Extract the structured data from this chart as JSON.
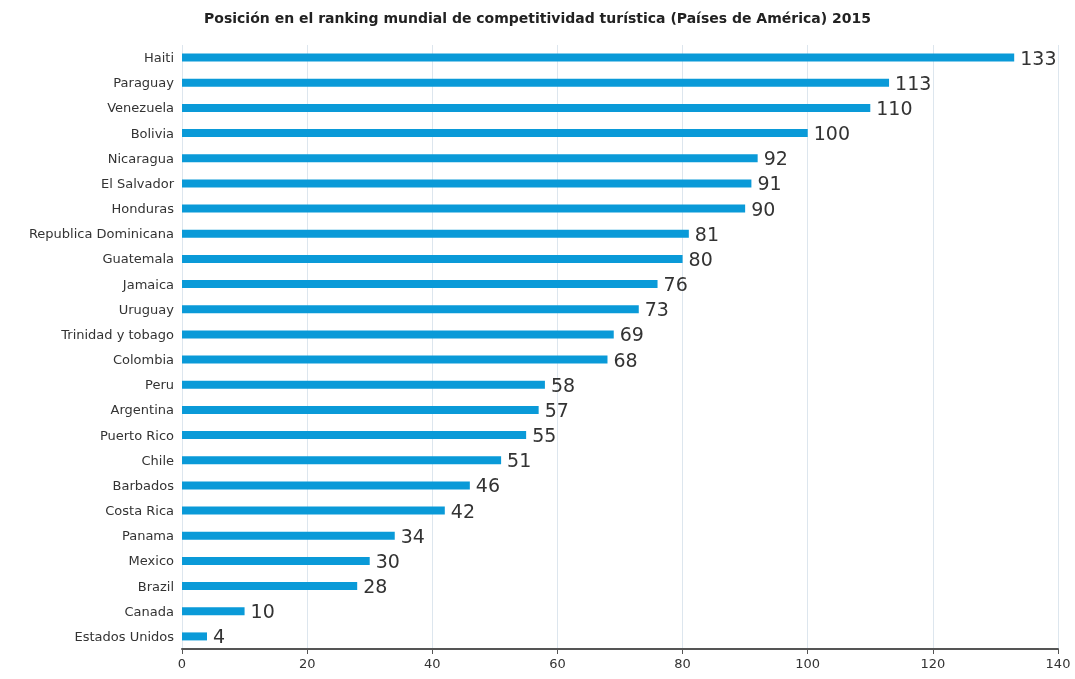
{
  "chart_data": {
    "type": "bar",
    "orientation": "horizontal",
    "title": "Posición en el ranking mundial de competitividad turística (Países de América) 2015",
    "categories": [
      "Haiti",
      "Paraguay",
      "Venezuela",
      "Bolivia",
      "Nicaragua",
      "El Salvador",
      "Honduras",
      "Republica Dominicana",
      "Guatemala",
      "Jamaica",
      "Uruguay",
      "Trinidad y tobago",
      "Colombia",
      "Peru",
      "Argentina",
      "Puerto Rico",
      "Chile",
      "Barbados",
      "Costa Rica",
      "Panama",
      "Mexico",
      "Brazil",
      "Canada",
      "Estados Unidos"
    ],
    "values": [
      133,
      113,
      110,
      100,
      92,
      91,
      90,
      81,
      80,
      76,
      73,
      69,
      68,
      58,
      57,
      55,
      51,
      46,
      42,
      34,
      30,
      28,
      10,
      4
    ],
    "color": "#0a9ad8",
    "xlim": [
      0,
      140
    ],
    "xticks": [
      0,
      20,
      40,
      60,
      80,
      100,
      120,
      140
    ],
    "grid": "x",
    "data_labels": true
  }
}
